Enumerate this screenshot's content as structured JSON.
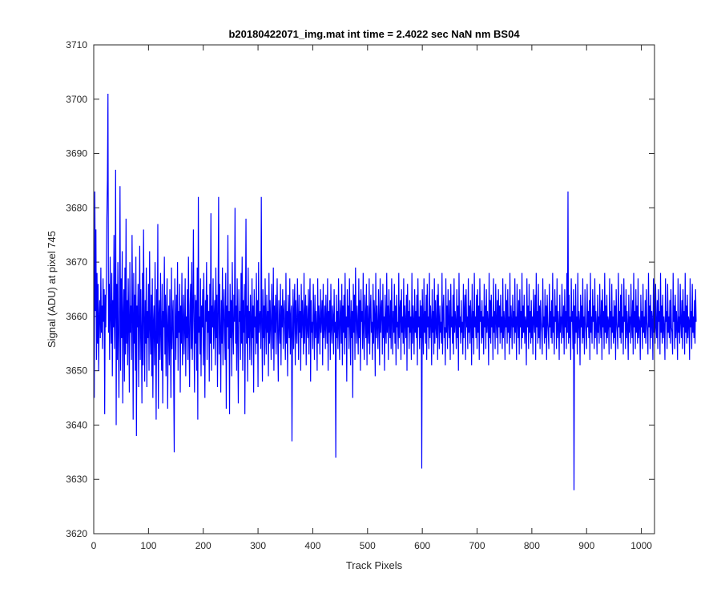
{
  "chart_data": {
    "type": "line",
    "title": "b20180422071_img.mat int time = 2.4022 sec  NaN nm BS04",
    "xlabel": "Track Pixels",
    "ylabel": "Signal (ADU) at pixel 745",
    "xlim": [
      0,
      1024
    ],
    "ylim": [
      3620,
      3710
    ],
    "xticks": [
      0,
      100,
      200,
      300,
      400,
      500,
      600,
      700,
      800,
      900,
      1000
    ],
    "yticks": [
      3620,
      3630,
      3640,
      3650,
      3660,
      3670,
      3680,
      3690,
      3700,
      3710
    ],
    "grid": false,
    "box": true,
    "series": [
      {
        "color": "#0000ff",
        "x_start": 1,
        "x_step": 1,
        "noise_sample": false,
        "values": [
          3645,
          3683,
          3661,
          3676,
          3652,
          3668,
          3655,
          3666,
          3650,
          3660,
          3663,
          3656,
          3669,
          3657,
          3662,
          3654,
          3667,
          3659,
          3665,
          3642,
          3664,
          3658,
          3667,
          3678,
          3685,
          3701,
          3657,
          3666,
          3652,
          3671,
          3660,
          3655,
          3668,
          3649,
          3663,
          3658,
          3675,
          3654,
          3661,
          3687,
          3640,
          3666,
          3652,
          3670,
          3657,
          3645,
          3662,
          3684,
          3650,
          3667,
          3656,
          3672,
          3644,
          3660,
          3665,
          3648,
          3669,
          3653,
          3678,
          3655,
          3663,
          3651,
          3667,
          3659,
          3646,
          3670,
          3657,
          3662,
          3652,
          3675,
          3660,
          3641,
          3668,
          3655,
          3664,
          3650,
          3671,
          3638,
          3662,
          3658,
          3666,
          3647,
          3659,
          3673,
          3652,
          3665,
          3657,
          3644,
          3668,
          3651,
          3676,
          3660,
          3648,
          3663,
          3655,
          3669,
          3647,
          3661,
          3656,
          3666,
          3650,
          3672,
          3658,
          3653,
          3664,
          3649,
          3667,
          3645,
          3659,
          3662,
          3651,
          3670,
          3656,
          3641,
          3665,
          3655,
          3677,
          3643,
          3660,
          3663,
          3652,
          3668,
          3657,
          3650,
          3666,
          3644,
          3661,
          3658,
          3671,
          3653,
          3664,
          3649,
          3660,
          3667,
          3643,
          3658,
          3662,
          3651,
          3665,
          3656,
          3645,
          3669,
          3654,
          3660,
          3663,
          3648,
          3635,
          3667,
          3659,
          3652,
          3664,
          3656,
          3670,
          3650,
          3661,
          3657,
          3666,
          3646,
          3662,
          3655,
          3668,
          3651,
          3659,
          3664,
          3653,
          3658,
          3667,
          3649,
          3660,
          3656,
          3665,
          3652,
          3671,
          3657,
          3647,
          3662,
          3666,
          3654,
          3670,
          3652,
          3661,
          3676,
          3658,
          3646,
          3664,
          3655,
          3663,
          3650,
          3669,
          3641,
          3682,
          3657,
          3660,
          3653,
          3667,
          3649,
          3662,
          3658,
          3665,
          3651,
          3668,
          3656,
          3645,
          3663,
          3659,
          3670,
          3652,
          3664,
          3657,
          3661,
          3648,
          3666,
          3655,
          3679,
          3650,
          3662,
          3658,
          3667,
          3654,
          3660,
          3663,
          3651,
          3669,
          3656,
          3664,
          3647,
          3661,
          3682,
          3653,
          3666,
          3658,
          3646,
          3663,
          3655,
          3669,
          3651,
          3660,
          3665,
          3657,
          3652,
          3668,
          3643,
          3662,
          3658,
          3675,
          3654,
          3661,
          3642,
          3666,
          3656,
          3663,
          3649,
          3670,
          3658,
          3653,
          3664,
          3659,
          3680,
          3655,
          3662,
          3650,
          3667,
          3657,
          3644,
          3665,
          3659,
          3661,
          3652,
          3668,
          3655,
          3671,
          3650,
          3663,
          3657,
          3666,
          3642,
          3660,
          3678,
          3655,
          3662,
          3648,
          3669,
          3656,
          3661,
          3652,
          3664,
          3659,
          3651,
          3667,
          3656,
          3662,
          3646,
          3665,
          3658,
          3660,
          3653,
          3668,
          3655,
          3663,
          3647,
          3670,
          3657,
          3660,
          3661,
          3654,
          3682,
          3658,
          3648,
          3665,
          3656,
          3662,
          3651,
          3667,
          3659,
          3653,
          3664,
          3657,
          3661,
          3649,
          3668,
          3655,
          3663,
          3658,
          3652,
          3666,
          3660,
          3654,
          3669,
          3650,
          3662,
          3657,
          3664,
          3653,
          3660,
          3667,
          3656,
          3648,
          3663,
          3659,
          3655,
          3666,
          3651,
          3662,
          3658,
          3665,
          3654,
          3661,
          3663,
          3657,
          3652,
          3668,
          3655,
          3661,
          3649,
          3664,
          3659,
          3656,
          3667,
          3653,
          3660,
          3662,
          3637,
          3657,
          3665,
          3654,
          3661,
          3666,
          3651,
          3663,
          3658,
          3655,
          3667,
          3660,
          3652,
          3664,
          3657,
          3661,
          3650,
          3666,
          3656,
          3663,
          3659,
          3653,
          3668,
          3655,
          3660,
          3664,
          3651,
          3662,
          3658,
          3656,
          3665,
          3653,
          3661,
          3667,
          3648,
          3663,
          3657,
          3659,
          3654,
          3666,
          3660,
          3652,
          3664,
          3656,
          3661,
          3658,
          3650,
          3667,
          3655,
          3662,
          3659,
          3653,
          3665,
          3657,
          3660,
          3663,
          3651,
          3666,
          3656,
          3658,
          3662,
          3654,
          3664,
          3659,
          3655,
          3667,
          3650,
          3661,
          3657,
          3663,
          3652,
          3666,
          3658,
          3655,
          3662,
          3660,
          3653,
          3665,
          3657,
          3659,
          3634,
          3664,
          3656,
          3661,
          3654,
          3667,
          3658,
          3652,
          3663,
          3660,
          3655,
          3666,
          3651,
          3662,
          3657,
          3664,
          3653,
          3668,
          3656,
          3660,
          3648,
          3665,
          3658,
          3662,
          3654,
          3667,
          3659,
          3651,
          3663,
          3656,
          3661,
          3645,
          3666,
          3657,
          3664,
          3652,
          3669,
          3660,
          3655,
          3662,
          3658,
          3653,
          3667,
          3656,
          3663,
          3650,
          3665,
          3659,
          3661,
          3654,
          3668,
          3657,
          3652,
          3664,
          3660,
          3656,
          3666,
          3651,
          3662,
          3658,
          3655,
          3667,
          3653,
          3661,
          3664,
          3657,
          3659,
          3652,
          3666,
          3655,
          3663,
          3660,
          3649,
          3668,
          3656,
          3662,
          3658,
          3654,
          3665,
          3659,
          3651,
          3667,
          3657,
          3661,
          3663,
          3653,
          3666,
          3656,
          3660,
          3650,
          3664,
          3658,
          3655,
          3668,
          3657,
          3662,
          3652,
          3665,
          3659,
          3656,
          3663,
          3654,
          3667,
          3660,
          3653,
          3661,
          3657,
          3666,
          3655,
          3662,
          3651,
          3664,
          3658,
          3659,
          3654,
          3668,
          3656,
          3661,
          3663,
          3652,
          3665,
          3657,
          3660,
          3655,
          3667,
          3653,
          3662,
          3659,
          3656,
          3664,
          3650,
          3666,
          3658,
          3661,
          3654,
          3663,
          3657,
          3660,
          3652,
          3668,
          3655,
          3662,
          3659,
          3653,
          3665,
          3657,
          3661,
          3656,
          3664,
          3651,
          3667,
          3658,
          3660,
          3654,
          3663,
          3656,
          3662,
          3632,
          3665,
          3659,
          3653,
          3667,
          3657,
          3661,
          3655,
          3664,
          3652,
          3666,
          3658,
          3660,
          3654,
          3668,
          3656,
          3662,
          3659,
          3651,
          3665,
          3657,
          3661,
          3653,
          3667,
          3655,
          3663,
          3658,
          3656,
          3664,
          3652,
          3666,
          3660,
          3654,
          3662,
          3657,
          3659,
          3655,
          3668,
          3653,
          3661,
          3664,
          3656,
          3658,
          3651,
          3667,
          3657,
          3662,
          3654,
          3665,
          3659,
          3656,
          3663,
          3652,
          3666,
          3658,
          3660,
          3655,
          3664,
          3653,
          3667,
          3657,
          3661,
          3659,
          3654,
          3665,
          3656,
          3662,
          3650,
          3668,
          3658,
          3660,
          3655,
          3663,
          3657,
          3659,
          3653,
          3666,
          3656,
          3661,
          3664,
          3652,
          3665,
          3658,
          3660,
          3654,
          3667,
          3657,
          3662,
          3655,
          3663,
          3659,
          3651,
          3666,
          3656,
          3661,
          3653,
          3668,
          3658,
          3660,
          3656,
          3664,
          3654,
          3665,
          3657,
          3662,
          3652,
          3667,
          3659,
          3661,
          3655,
          3663,
          3656,
          3660,
          3653,
          3666,
          3658,
          3662,
          3654,
          3665,
          3657,
          3661,
          3659,
          3651,
          3668,
          3656,
          3663,
          3655,
          3664,
          3658,
          3660,
          3652,
          3667,
          3657,
          3661,
          3654,
          3666,
          3659,
          3656,
          3663,
          3653,
          3665,
          3658,
          3662,
          3655,
          3664,
          3657,
          3660,
          3654,
          3667,
          3656,
          3661,
          3659,
          3652,
          3666,
          3658,
          3663,
          3655,
          3665,
          3657,
          3660,
          3653,
          3668,
          3656,
          3662,
          3659,
          3654,
          3664,
          3658,
          3661,
          3655,
          3667,
          3657,
          3660,
          3652,
          3666,
          3659,
          3656,
          3663,
          3653,
          3665,
          3658,
          3661,
          3654,
          3668,
          3656,
          3662,
          3657,
          3664,
          3655,
          3660,
          3659,
          3651,
          3667,
          3658,
          3662,
          3654,
          3666,
          3657,
          3661,
          3655,
          3663,
          3656,
          3660,
          3653,
          3665,
          3659,
          3657,
          3664,
          3652,
          3668,
          3658,
          3661,
          3655,
          3666,
          3656,
          3662,
          3654,
          3663,
          3659,
          3657,
          3653,
          3667,
          3658,
          3660,
          3655,
          3665,
          3656,
          3662,
          3652,
          3664,
          3659,
          3657,
          3654,
          3666,
          3658,
          3661,
          3656,
          3663,
          3655,
          3668,
          3657,
          3660,
          3653,
          3665,
          3659,
          3662,
          3654,
          3667,
          3656,
          3661,
          3658,
          3652,
          3664,
          3657,
          3660,
          3655,
          3666,
          3659,
          3656,
          3662,
          3653,
          3665,
          3658,
          3661,
          3654,
          3668,
          3657,
          3683,
          3655,
          3664,
          3656,
          3660,
          3652,
          3667,
          3659,
          3661,
          3654,
          3665,
          3628,
          3662,
          3655,
          3666,
          3657,
          3660,
          3653,
          3668,
          3656,
          3661,
          3659,
          3651,
          3664,
          3658,
          3662,
          3655,
          3667,
          3656,
          3660,
          3653,
          3665,
          3659,
          3657,
          3654,
          3666,
          3658,
          3661,
          3656,
          3663,
          3652,
          3668,
          3657,
          3660,
          3655,
          3665,
          3659,
          3662,
          3654,
          3667,
          3656,
          3661,
          3658,
          3653,
          3664,
          3657,
          3660,
          3655,
          3666,
          3659,
          3656,
          3663,
          3652,
          3665,
          3658,
          3661,
          3654,
          3668,
          3657,
          3662,
          3655,
          3664,
          3656,
          3660,
          3659,
          3653,
          3667,
          3658,
          3661,
          3654,
          3666,
          3657,
          3660,
          3655,
          3663,
          3656,
          3662,
          3652,
          3665,
          3659,
          3657,
          3654,
          3668,
          3658,
          3661,
          3656,
          3664,
          3655,
          3666,
          3657,
          3660,
          3653,
          3667,
          3659,
          3662,
          3654,
          3665,
          3656,
          3661,
          3658,
          3652,
          3664,
          3657,
          3660,
          3655,
          3666,
          3659,
          3656,
          3663,
          3653,
          3668,
          3658,
          3661,
          3654,
          3665,
          3657,
          3662,
          3655,
          3667,
          3656,
          3660,
          3659,
          3652,
          3664,
          3658,
          3661,
          3654,
          3666,
          3657,
          3660,
          3656,
          3663,
          3655,
          3665,
          3659,
          3657,
          3653,
          3668,
          3658,
          3662,
          3654,
          3664,
          3656,
          3661,
          3659,
          3652,
          3667,
          3657,
          3660,
          3655,
          3666,
          3658,
          3656,
          3663,
          3654,
          3665,
          3659,
          3661,
          3653,
          3668,
          3657,
          3662,
          3655,
          3664,
          3656,
          3660,
          3658,
          3652,
          3667,
          3659,
          3661,
          3654,
          3666,
          3657,
          3660,
          3656,
          3663,
          3655,
          3665,
          3658,
          3657,
          3653,
          3668,
          3659,
          3662,
          3654,
          3664,
          3656,
          3661,
          3658,
          3652,
          3667,
          3657,
          3660,
          3655,
          3666,
          3659,
          3656,
          3663,
          3654,
          3665,
          3658,
          3661,
          3653,
          3668,
          3657,
          3662,
          3655,
          3664,
          3656,
          3660,
          3659,
          3652,
          3667,
          3658,
          3661,
          3654,
          3666,
          3657,
          3660,
          3656,
          3663,
          3655,
          3665,
          3659
        ]
      }
    ]
  }
}
